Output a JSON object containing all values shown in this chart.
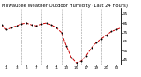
{
  "title": "Milwaukee Weather Outdoor Humidity (Last 24 Hours)",
  "x_values": [
    0,
    1,
    2,
    3,
    4,
    5,
    6,
    7,
    8,
    9,
    10,
    11,
    12,
    13,
    14,
    15,
    16,
    17,
    18,
    19,
    20,
    21,
    22,
    23,
    24
  ],
  "y_values": [
    83,
    78,
    80,
    82,
    84,
    85,
    83,
    82,
    84,
    85,
    83,
    80,
    75,
    60,
    48,
    42,
    44,
    50,
    58,
    64,
    68,
    72,
    76,
    78,
    80
  ],
  "y_min": 40,
  "y_max": 100,
  "y_ticks": [
    45,
    55,
    65,
    75,
    85,
    95
  ],
  "y_tick_labels": [
    "45",
    "55",
    "65",
    "75",
    "85",
    "95"
  ],
  "line_color": "#cc0000",
  "marker_color": "#000000",
  "bg_color": "#ffffff",
  "plot_bg_color": "#ffffff",
  "grid_color": "#888888",
  "title_color": "#000000",
  "title_fontsize": 3.8,
  "tick_fontsize": 3.0,
  "vgrid_positions": [
    4,
    8,
    12,
    16,
    20,
    24
  ],
  "x_tick_positions": [
    1,
    3,
    5,
    7,
    9,
    11,
    13,
    15,
    17,
    19,
    21,
    23
  ],
  "x_tick_labels": [
    "1",
    "3",
    "5",
    "7",
    "9",
    "11",
    "13",
    "15",
    "17",
    "19",
    "21",
    "23"
  ]
}
